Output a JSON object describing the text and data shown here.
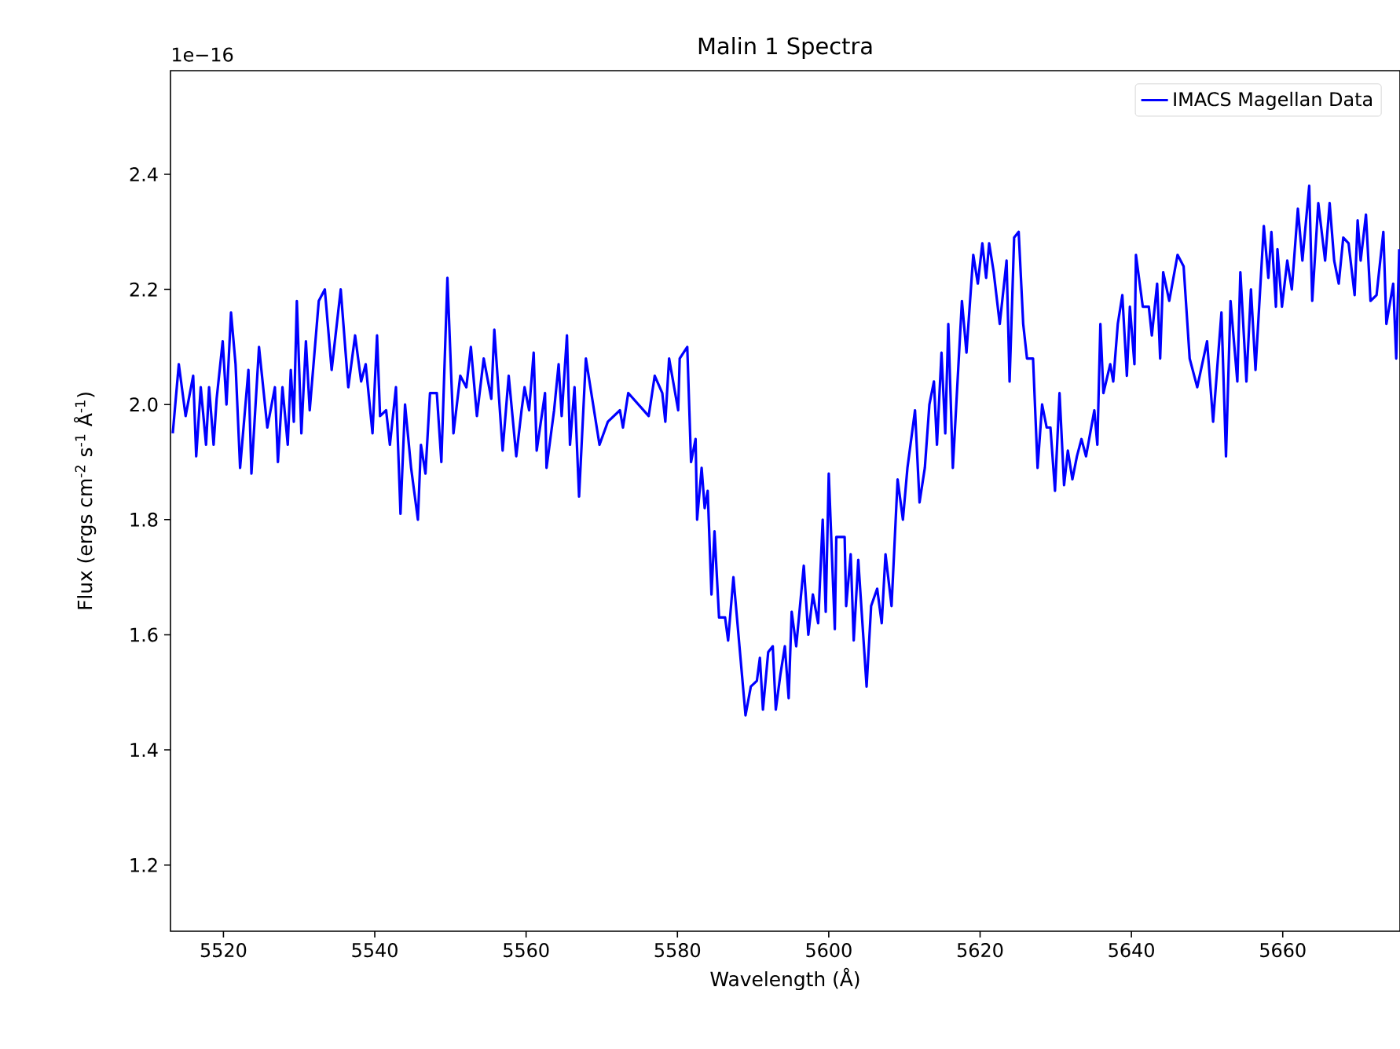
{
  "chart_data": {
    "type": "line",
    "title": "Malin 1 Spectra",
    "xlabel": "Wavelength (Å)",
    "ylabel": "Flux  (ergs cm$^{-2}$ s$^{-1}$ Å$^{-1}$)",
    "annotations": [
      "1e−16"
    ],
    "xlim": [
      5513,
      5675.5
    ],
    "ylim": [
      1.085,
      2.58
    ],
    "xticks": [
      5520,
      5540,
      5560,
      5580,
      5600,
      5620,
      5640,
      5660
    ],
    "yticks": [
      1.2,
      1.4,
      1.6,
      1.8,
      {
        "value": 2,
        "label": "2.0"
      },
      2.2,
      2.4
    ],
    "legend": "top right",
    "grid": false,
    "marker": "none",
    "line_style": "solid",
    "x": [
      5513.3,
      5514.1,
      5515.0,
      5516.0,
      5516.4,
      5517.0,
      5517.7,
      5518.1,
      5518.7,
      5519.1,
      5519.9,
      5520.4,
      5521.0,
      5521.6,
      5522.2,
      5523.3,
      5523.7,
      5524.7,
      5525.8,
      5526.8,
      5527.2,
      5527.8,
      5528.5,
      5528.9,
      5529.3,
      5529.7,
      5530.3,
      5530.9,
      5531.4,
      5532.6,
      5533.4,
      5534.3,
      5535.5,
      5536.5,
      5537.4,
      5538.2,
      5538.8,
      5539.7,
      5540.3,
      5540.7,
      5541.5,
      5542.0,
      5542.8,
      5543.4,
      5544.0,
      5544.8,
      5545.7,
      5546.1,
      5546.7,
      5547.3,
      5548.2,
      5548.8,
      5549.6,
      5550.4,
      5551.3,
      5552.1,
      5552.7,
      5553.5,
      5554.4,
      5555.4,
      5555.8,
      5556.9,
      5557.7,
      5558.7,
      5559.4,
      5559.8,
      5560.4,
      5561.0,
      5561.4,
      5562.5,
      5562.7,
      5563.7,
      5564.3,
      5564.7,
      5565.4,
      5565.8,
      5566.4,
      5567.0,
      5567.9,
      5569.7,
      5570.8,
      5572.4,
      5572.8,
      5573.5,
      5576.2,
      5577.0,
      5578.0,
      5578.4,
      5578.9,
      5580.1,
      5580.3,
      5581.3,
      5581.8,
      5582.4,
      5582.6,
      5583.2,
      5583.6,
      5584.0,
      5584.5,
      5584.9,
      5585.5,
      5586.3,
      5586.7,
      5587.4,
      5588.2,
      5589.0,
      5589.7,
      5590.5,
      5590.9,
      5591.3,
      5592.0,
      5592.6,
      5593.0,
      5593.6,
      5594.2,
      5594.7,
      5595.1,
      5595.7,
      5596.7,
      5597.3,
      5597.9,
      5598.6,
      5599.2,
      5599.6,
      5600.0,
      5600.8,
      5601.0,
      5602.1,
      5602.3,
      5602.9,
      5603.3,
      5603.9,
      5605.0,
      5605.6,
      5606.4,
      5607.0,
      5607.5,
      5608.3,
      5609.1,
      5609.8,
      5610.4,
      5611.4,
      5612.0,
      5612.7,
      5613.3,
      5613.9,
      5614.3,
      5614.9,
      5615.4,
      5615.8,
      5616.4,
      5617.6,
      5618.2,
      5619.1,
      5619.7,
      5620.3,
      5620.8,
      5621.2,
      5621.8,
      5622.6,
      5623.5,
      5623.9,
      5624.5,
      5625.1,
      5625.7,
      5626.2,
      5627.0,
      5627.6,
      5628.2,
      5628.8,
      5629.3,
      5629.9,
      5630.5,
      5631.1,
      5631.6,
      5632.2,
      5632.8,
      5633.4,
      5634.0,
      5635.1,
      5635.5,
      5635.9,
      5636.3,
      5637.2,
      5637.6,
      5638.2,
      5638.8,
      5639.4,
      5639.8,
      5640.4,
      5640.6,
      5641.5,
      5642.3,
      5642.7,
      5643.4,
      5643.8,
      5644.2,
      5645.0,
      5646.1,
      5646.9,
      5647.7,
      5648.7,
      5650.0,
      5650.8,
      5651.9,
      5652.5,
      5653.1,
      5654.0,
      5654.4,
      5655.2,
      5655.8,
      5656.4,
      5657.5,
      5658.1,
      5658.5,
      5659.1,
      5659.3,
      5659.9,
      5660.6,
      5661.2,
      5662.0,
      5662.6,
      5663.5,
      5663.9,
      5664.7,
      5665.6,
      5666.2,
      5666.8,
      5667.4,
      5668.0,
      5668.7,
      5669.5,
      5669.9,
      5670.3,
      5671.0,
      5671.6,
      5672.4,
      5673.3,
      5673.7,
      5674.6,
      5675.0,
      5675.4
    ],
    "series": [
      {
        "name": "IMACS Magellan Data",
        "color": "#0000ff",
        "values": [
          1.95,
          2.07,
          1.98,
          2.05,
          1.91,
          2.03,
          1.93,
          2.03,
          1.93,
          2.01,
          2.11,
          2.0,
          2.16,
          2.07,
          1.89,
          2.06,
          1.88,
          2.1,
          1.96,
          2.03,
          1.9,
          2.03,
          1.93,
          2.06,
          1.97,
          2.18,
          1.95,
          2.11,
          1.99,
          2.18,
          2.2,
          2.06,
          2.2,
          2.03,
          2.12,
          2.04,
          2.07,
          1.95,
          2.12,
          1.98,
          1.99,
          1.93,
          2.03,
          1.81,
          2.0,
          1.89,
          1.8,
          1.93,
          1.88,
          2.02,
          2.02,
          1.9,
          2.22,
          1.95,
          2.05,
          2.03,
          2.1,
          1.98,
          2.08,
          2.01,
          2.13,
          1.92,
          2.05,
          1.91,
          1.99,
          2.03,
          1.99,
          2.09,
          1.92,
          2.02,
          1.89,
          1.99,
          2.07,
          1.98,
          2.12,
          1.93,
          2.03,
          1.84,
          2.08,
          1.93,
          1.97,
          1.99,
          1.96,
          2.02,
          1.98,
          2.05,
          2.02,
          1.97,
          2.08,
          1.99,
          2.08,
          2.1,
          1.9,
          1.94,
          1.8,
          1.89,
          1.82,
          1.85,
          1.67,
          1.78,
          1.63,
          1.63,
          1.59,
          1.7,
          1.58,
          1.46,
          1.51,
          1.52,
          1.56,
          1.47,
          1.57,
          1.58,
          1.47,
          1.53,
          1.58,
          1.49,
          1.64,
          1.58,
          1.72,
          1.6,
          1.67,
          1.62,
          1.8,
          1.64,
          1.88,
          1.61,
          1.77,
          1.77,
          1.65,
          1.74,
          1.59,
          1.73,
          1.51,
          1.65,
          1.68,
          1.62,
          1.74,
          1.65,
          1.87,
          1.8,
          1.89,
          1.99,
          1.83,
          1.89,
          2.0,
          2.04,
          1.93,
          2.09,
          1.95,
          2.14,
          1.89,
          2.18,
          2.09,
          2.26,
          2.21,
          2.28,
          2.22,
          2.28,
          2.23,
          2.14,
          2.25,
          2.04,
          2.29,
          2.3,
          2.14,
          2.08,
          2.08,
          1.89,
          2.0,
          1.96,
          1.96,
          1.85,
          2.02,
          1.86,
          1.92,
          1.87,
          1.91,
          1.94,
          1.91,
          1.99,
          1.93,
          2.14,
          2.02,
          2.07,
          2.04,
          2.14,
          2.19,
          2.05,
          2.17,
          2.07,
          2.26,
          2.17,
          2.17,
          2.12,
          2.21,
          2.08,
          2.23,
          2.18,
          2.26,
          2.24,
          2.08,
          2.03,
          2.11,
          1.97,
          2.16,
          1.91,
          2.18,
          2.04,
          2.23,
          2.04,
          2.2,
          2.06,
          2.31,
          2.22,
          2.3,
          2.17,
          2.27,
          2.17,
          2.25,
          2.2,
          2.34,
          2.25,
          2.38,
          2.18,
          2.35,
          2.25,
          2.35,
          2.25,
          2.21,
          2.29,
          2.28,
          2.19,
          2.32,
          2.25,
          2.33,
          2.18,
          2.19,
          2.3,
          2.14,
          2.21,
          2.08,
          2.27
        ]
      }
    ]
  }
}
